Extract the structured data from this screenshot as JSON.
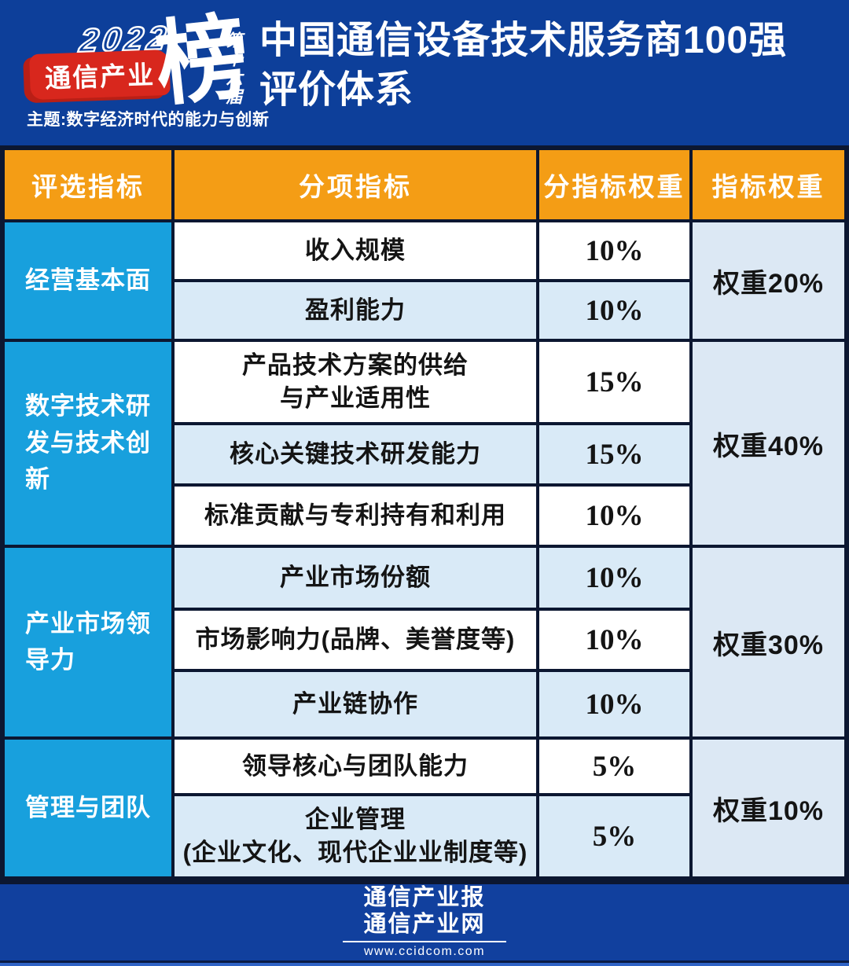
{
  "colors": {
    "page_bg": "#0d3f9a",
    "header_orange": "#f49d15",
    "category_cyan": "#18a0dd",
    "row_white": "#ffffff",
    "row_light_blue": "#d9eaf7",
    "weight_col_bg": "#dce8f4",
    "grid_line": "#0c1731",
    "logo_red": "#d8271d",
    "footer_strip_blue": "#2f63c6"
  },
  "logo": {
    "year": "2022",
    "brand": "通信产业",
    "list_character": "榜",
    "edition": "第十六届",
    "theme": "主题:数字经济时代的能力与创新"
  },
  "title": {
    "line1": "中国通信设备技术服务商100强",
    "line2": "评价体系"
  },
  "table": {
    "headers": [
      "评选指标",
      "分项指标",
      "分指标权重",
      "指标权重"
    ],
    "groups": [
      {
        "category": "经营基本面",
        "weight_label": "权重20%",
        "rows": [
          {
            "name": "收入规模",
            "weight": "10%"
          },
          {
            "name": "盈利能力",
            "weight": "10%"
          }
        ]
      },
      {
        "category": "数字技术研发与技术创新",
        "weight_label": "权重40%",
        "rows": [
          {
            "name": "产品技术方案的供给\n与产业适用性",
            "weight": "15%"
          },
          {
            "name": "核心关键技术研发能力",
            "weight": "15%"
          },
          {
            "name": "标准贡献与专利持有和利用",
            "weight": "10%"
          }
        ]
      },
      {
        "category": "产业市场领导力",
        "weight_label": "权重30%",
        "rows": [
          {
            "name": "产业市场份额",
            "weight": "10%"
          },
          {
            "name": "市场影响力(品牌、美誉度等)",
            "weight": "10%"
          },
          {
            "name": "产业链协作",
            "weight": "10%"
          }
        ]
      },
      {
        "category": "管理与团队",
        "weight_label": "权重10%",
        "rows": [
          {
            "name": "领导核心与团队能力",
            "weight": "5%"
          },
          {
            "name": "企业管理\n(企业文化、现代企业业制度等)",
            "weight": "5%"
          }
        ]
      }
    ]
  },
  "footer": {
    "brand_line1": "通信产业报",
    "brand_line2": "通信产业网",
    "url": "www.ccidcom.com"
  },
  "chart_data": {
    "type": "table",
    "title": "中国通信设备技术服务商100强评价体系",
    "columns": [
      "评选指标",
      "分项指标",
      "分指标权重",
      "指标权重"
    ],
    "rows": [
      [
        "经营基本面",
        "收入规模",
        "10%",
        "权重20%"
      ],
      [
        "经营基本面",
        "盈利能力",
        "10%",
        "权重20%"
      ],
      [
        "数字技术研发与技术创新",
        "产品技术方案的供给与产业适用性",
        "15%",
        "权重40%"
      ],
      [
        "数字技术研发与技术创新",
        "核心关键技术研发能力",
        "15%",
        "权重40%"
      ],
      [
        "数字技术研发与技术创新",
        "标准贡献与专利持有和利用",
        "10%",
        "权重40%"
      ],
      [
        "产业市场领导力",
        "产业市场份额",
        "10%",
        "权重30%"
      ],
      [
        "产业市场领导力",
        "市场影响力(品牌、美誉度等)",
        "10%",
        "权重30%"
      ],
      [
        "产业市场领导力",
        "产业链协作",
        "10%",
        "权重30%"
      ],
      [
        "管理与团队",
        "领导核心与团队能力",
        "5%",
        "权重10%"
      ],
      [
        "管理与团队",
        "企业管理(企业文化、现代企业业制度等)",
        "5%",
        "权重10%"
      ]
    ],
    "group_weights": {
      "经营基本面": 20,
      "数字技术研发与技术创新": 40,
      "产业市场领导力": 30,
      "管理与团队": 10
    }
  }
}
